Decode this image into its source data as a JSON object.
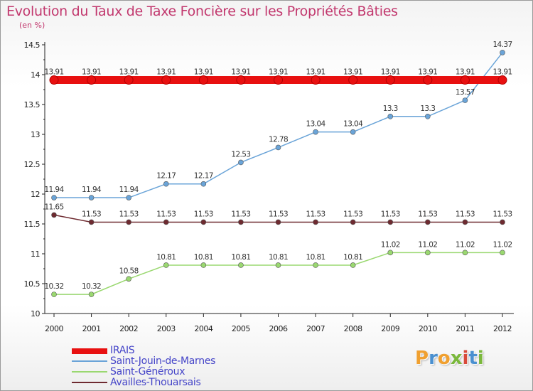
{
  "title": "Evolution du Taux de Taxe Foncière sur les Propriétés Bâties",
  "unit_label": "(en %)",
  "logo": {
    "text": "Proxiti",
    "letter_colors": [
      "#f0a030",
      "#4a90d0",
      "#f0a030",
      "#7ab83c",
      "#d84a3a",
      "#4a90d0",
      "#7ab83c"
    ]
  },
  "chart_data": {
    "type": "line",
    "x": [
      2000,
      2001,
      2002,
      2003,
      2004,
      2005,
      2006,
      2007,
      2008,
      2009,
      2010,
      2011,
      2012
    ],
    "ylim": [
      10,
      14.5
    ],
    "yticks": [
      10,
      10.5,
      11,
      11.5,
      12,
      12.5,
      13,
      13.5,
      14,
      14.5
    ],
    "grid": false,
    "legend_position": "bottom-left",
    "series": [
      {
        "name": "IRAIS",
        "color": "#e81010",
        "values": [
          13.91,
          13.91,
          13.91,
          13.91,
          13.91,
          13.91,
          13.91,
          13.91,
          13.91,
          13.91,
          13.91,
          13.91,
          13.91
        ]
      },
      {
        "name": "Saint-Jouin-de-Marnes",
        "color": "#6aa4d8",
        "values": [
          11.94,
          11.94,
          11.94,
          12.17,
          12.17,
          12.53,
          12.78,
          13.04,
          13.04,
          13.3,
          13.3,
          13.57,
          14.37
        ]
      },
      {
        "name": "Saint-Généroux",
        "color": "#9ad870",
        "values": [
          10.32,
          10.32,
          10.58,
          10.81,
          10.81,
          10.81,
          10.81,
          10.81,
          10.81,
          11.02,
          11.02,
          11.02,
          11.02
        ]
      },
      {
        "name": "Availles-Thouarsais",
        "color": "#6e2a30",
        "values": [
          11.65,
          11.53,
          11.53,
          11.53,
          11.53,
          11.53,
          11.53,
          11.53,
          11.53,
          11.53,
          11.53,
          11.53,
          11.53
        ]
      }
    ]
  }
}
